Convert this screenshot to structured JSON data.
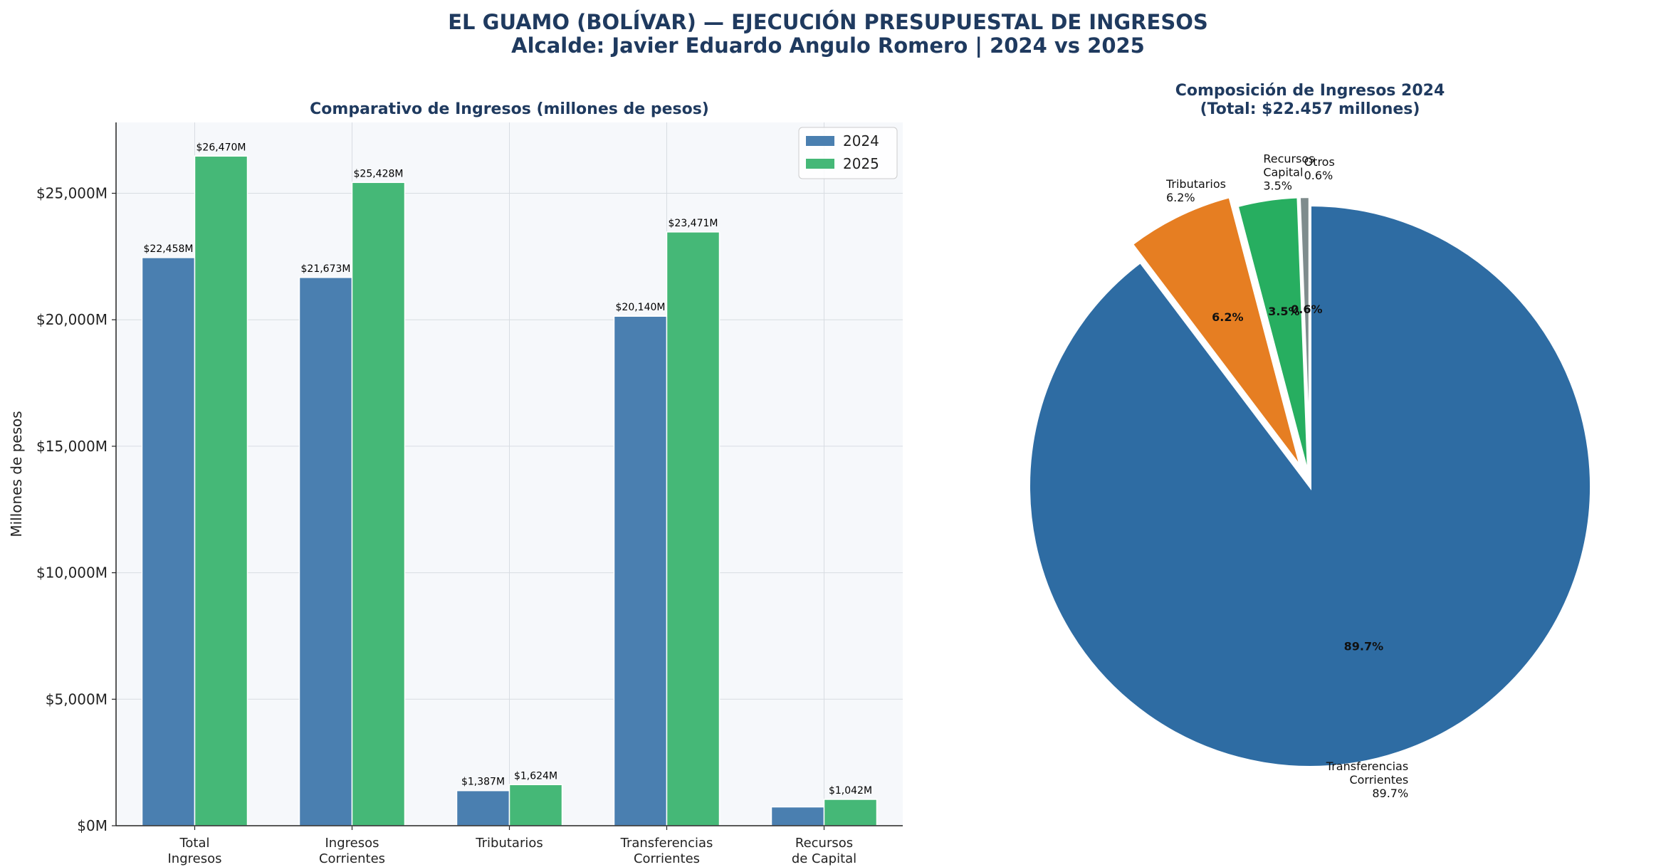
{
  "title": {
    "line1": "EL GUAMO (BOLÍVAR) — EJECUCIÓN PRESUPUESTAL DE INGRESOS",
    "line2": "Alcalde: Javier Eduardo Angulo Romero | 2024 vs 2025"
  },
  "chart_data": [
    {
      "type": "bar",
      "title": "Comparativo de Ingresos (millones de pesos)",
      "xlabel": "",
      "ylabel": "Millones de pesos",
      "ylim": [
        0,
        27800
      ],
      "yticks": [
        0,
        5000,
        10000,
        15000,
        20000,
        25000
      ],
      "ytick_labels": [
        "$0M",
        "$5,000M",
        "$10,000M",
        "$15,000M",
        "$20,000M",
        "$25,000M"
      ],
      "grid": true,
      "legend_position": "top-right",
      "categories": [
        [
          "Total",
          "Ingresos"
        ],
        [
          "Ingresos",
          "Corrientes"
        ],
        [
          "Tributarios"
        ],
        [
          "Transferencias",
          "Corrientes"
        ],
        [
          "Recursos",
          "de Capital"
        ]
      ],
      "series": [
        {
          "name": "2024",
          "color": "#4a7fb0",
          "values": [
            22458,
            21673,
            1387,
            20140,
            743
          ],
          "labels": [
            "$22,458M",
            "$21,673M",
            "$1,387M",
            "$20,140M",
            ""
          ]
        },
        {
          "name": "2025",
          "color": "#45b877",
          "values": [
            26470,
            25428,
            1624,
            23471,
            1042
          ],
          "labels": [
            "$26,470M",
            "$25,428M",
            "$1,624M",
            "$23,471M",
            "$1,042M"
          ]
        }
      ]
    },
    {
      "type": "pie",
      "title_line1": "Composición de Ingresos 2024",
      "title_line2": "(Total: $22.457 millones)",
      "slices": [
        {
          "label": [
            "Transferencias",
            "Corrientes",
            "89.7%"
          ],
          "value": 89.7,
          "pct": "89.7%",
          "color": "#2e6ca3"
        },
        {
          "label": [
            "Tributarios",
            "6.2%"
          ],
          "value": 6.2,
          "pct": "6.2%",
          "color": "#e67e22"
        },
        {
          "label": [
            "Recursos",
            "Capital",
            "3.5%"
          ],
          "value": 3.5,
          "pct": "3.5%",
          "color": "#27ae60"
        },
        {
          "label": [
            "Otros",
            "0.6%"
          ],
          "value": 0.6,
          "pct": "0.6%",
          "color": "#7f8c8d"
        }
      ]
    }
  ]
}
